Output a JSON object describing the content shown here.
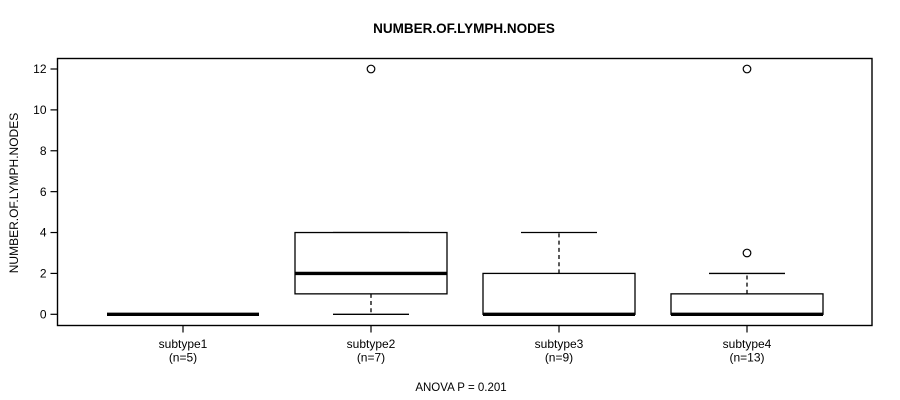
{
  "chart_data": {
    "type": "boxplot",
    "title": "NUMBER.OF.LYMPH.NODES",
    "ylabel": "NUMBER.OF.LYMPH.NODES",
    "xlabel": "",
    "annotation": "ANOVA P = 0.201",
    "ylim": [
      0,
      12
    ],
    "yticks": [
      0,
      2,
      4,
      6,
      8,
      10,
      12
    ],
    "grid": false,
    "legend": "none",
    "categories": [
      "subtype1",
      "subtype2",
      "subtype3",
      "subtype4"
    ],
    "groups": [
      {
        "label": "subtype1",
        "count_label": "(n=5)",
        "n": 5,
        "whisker_low": 0,
        "q1": 0,
        "median": 0,
        "q3": 0,
        "whisker_high": 0,
        "outliers": []
      },
      {
        "label": "subtype2",
        "count_label": "(n=7)",
        "n": 7,
        "whisker_low": 0,
        "q1": 1,
        "median": 2,
        "q3": 4,
        "whisker_high": 4,
        "outliers": [
          12
        ]
      },
      {
        "label": "subtype3",
        "count_label": "(n=9)",
        "n": 9,
        "whisker_low": 0,
        "q1": 0,
        "median": 0,
        "q3": 2,
        "whisker_high": 4,
        "outliers": []
      },
      {
        "label": "subtype4",
        "count_label": "(n=13)",
        "n": 13,
        "whisker_low": 0,
        "q1": 0,
        "median": 0,
        "q3": 1,
        "whisker_high": 2,
        "outliers": [
          3,
          12
        ]
      }
    ],
    "colors": {
      "stroke": "#000000",
      "box_fill": "#ffffff",
      "background": "#ffffff"
    }
  }
}
